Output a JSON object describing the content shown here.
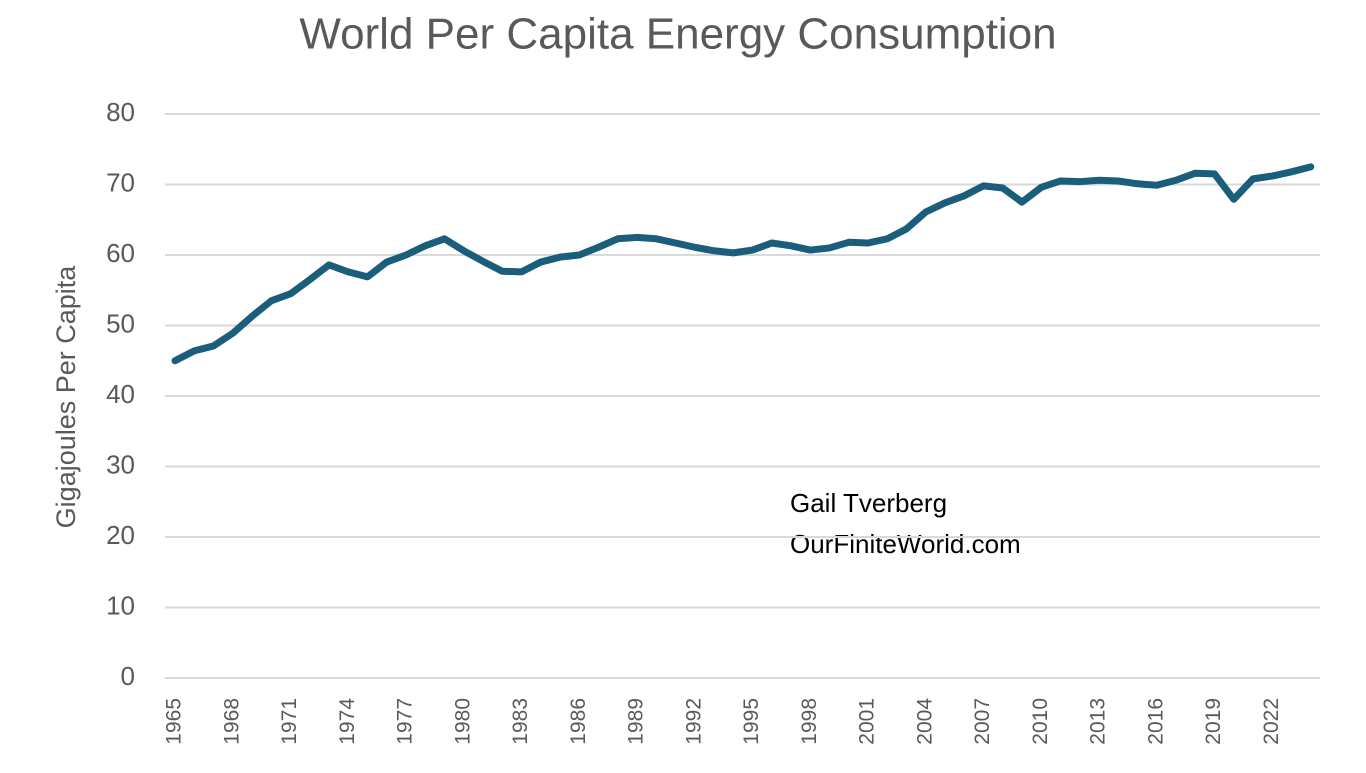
{
  "chart_data": {
    "type": "line",
    "title": "World Per Capita Energy Consumption",
    "y_label": "Gigajoules Per Capita",
    "annotations": [
      "Gail Tverberg",
      "OurFiniteWorld.com"
    ],
    "categories": [
      "1965",
      null,
      null,
      "1968",
      null,
      null,
      "1971",
      null,
      null,
      "1974",
      null,
      null,
      "1977",
      null,
      null,
      "1980",
      null,
      null,
      "1983",
      null,
      null,
      "1986",
      null,
      null,
      "1989",
      null,
      null,
      "1992",
      null,
      null,
      "1995",
      null,
      null,
      "1998",
      null,
      null,
      "2001",
      null,
      null,
      "2004",
      null,
      null,
      "2007",
      null,
      null,
      "2010",
      null,
      null,
      "2013",
      null,
      null,
      "2016",
      null,
      null,
      "2019",
      null,
      null,
      "2022",
      null,
      null
    ],
    "series": [
      {
        "name": "World Per Capita Energy Consumption",
        "color": "#1b5e7b",
        "values": [
          45.0,
          46.4,
          47.1,
          48.9,
          51.3,
          53.5,
          54.5,
          56.5,
          58.6,
          57.6,
          56.9,
          59.0,
          60.0,
          61.3,
          62.3,
          60.6,
          59.1,
          57.7,
          57.6,
          59.0,
          59.7,
          60.0,
          61.1,
          62.3,
          62.5,
          62.3,
          61.7,
          61.1,
          60.6,
          60.3,
          60.7,
          61.7,
          61.3,
          60.7,
          61.0,
          61.8,
          61.7,
          62.3,
          63.7,
          66.1,
          67.4,
          68.4,
          69.8,
          69.5,
          67.5,
          69.6,
          70.5,
          70.4,
          70.6,
          70.5,
          70.1,
          69.9,
          70.6,
          71.6,
          71.5,
          67.9,
          70.8,
          71.2,
          71.8,
          72.5
        ]
      }
    ],
    "ylim": [
      0,
      80
    ],
    "yticks": [
      0,
      10,
      20,
      30,
      40,
      50,
      60,
      70,
      80
    ],
    "grid": true
  }
}
